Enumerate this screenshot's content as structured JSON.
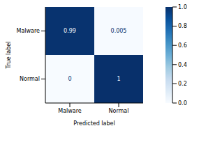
{
  "chart_data": {
    "type": "heatmap",
    "x_label": "Predicted label",
    "y_label": "True label",
    "x_categories": [
      "Malware",
      "Normal"
    ],
    "y_categories": [
      "Malware",
      "Normal"
    ],
    "cells": [
      [
        0.99,
        0.005
      ],
      [
        0,
        1
      ]
    ],
    "color": "Blues",
    "colorbar_range": [
      0,
      1
    ],
    "colorbar_ticks": [
      {
        "value": 0,
        "label": "0.0"
      },
      {
        "value": 0.2,
        "label": "0.2"
      },
      {
        "value": 0.4,
        "label": "0.4"
      },
      {
        "value": 0.6,
        "label": "0.6"
      },
      {
        "value": 0.8,
        "label": "0.8"
      },
      {
        "value": 1,
        "label": "1.0"
      }
    ]
  }
}
